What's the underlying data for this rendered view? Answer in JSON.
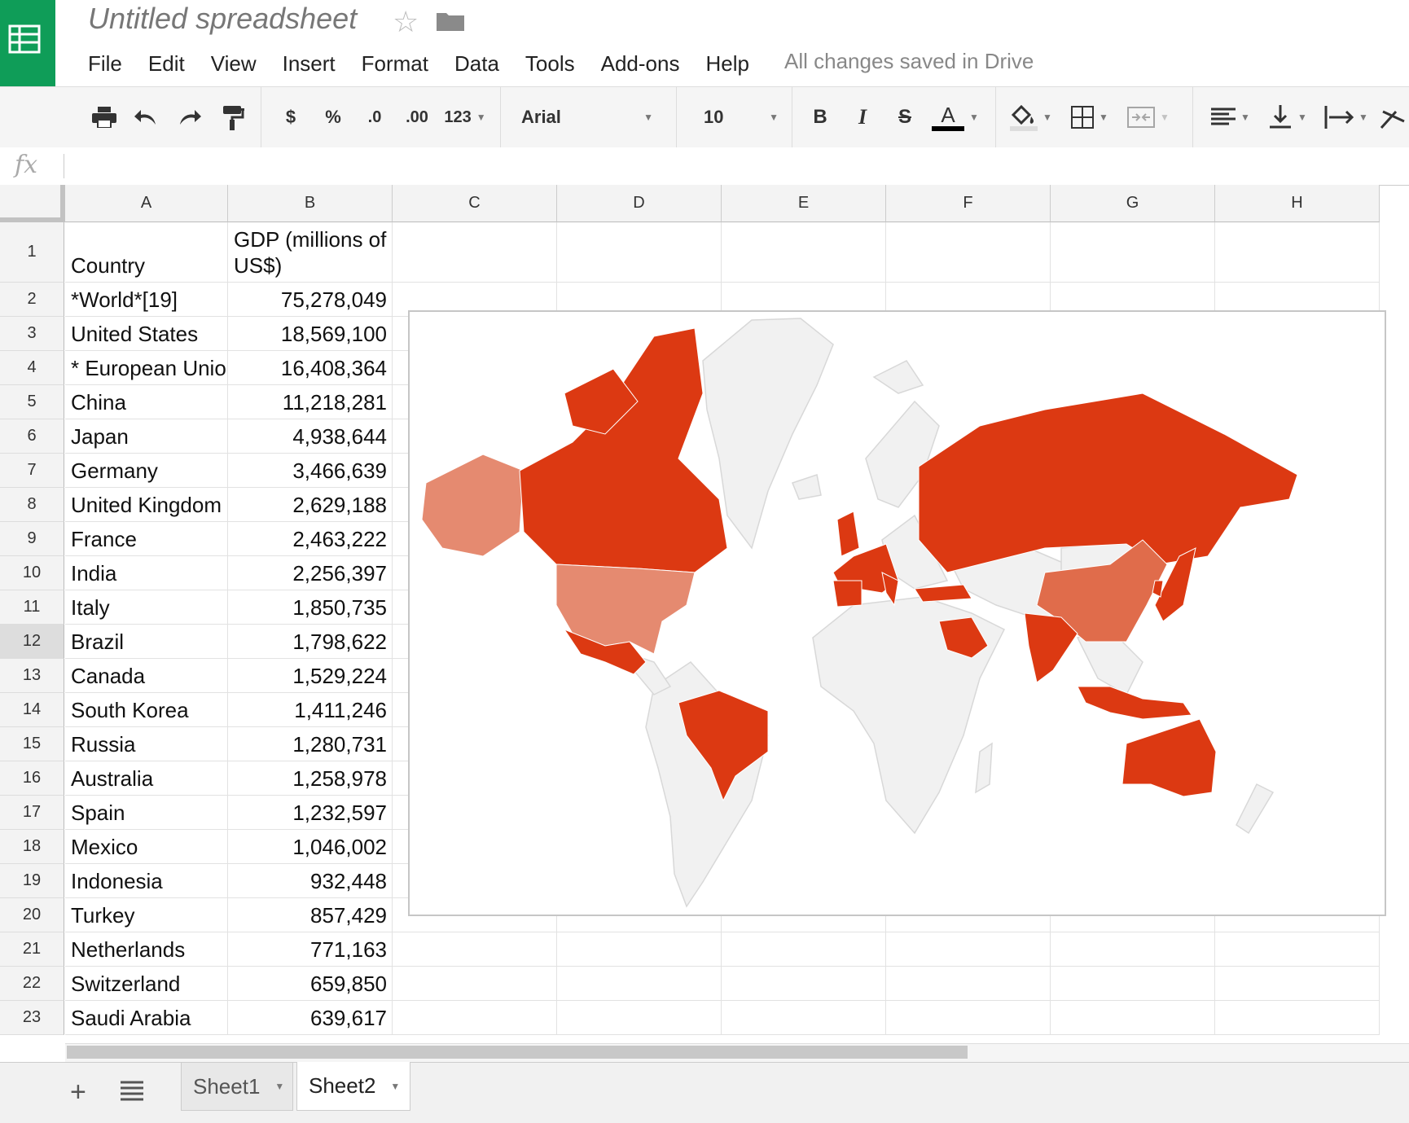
{
  "header": {
    "title": "Untitled spreadsheet",
    "saved_status": "All changes saved in Drive",
    "menu": [
      "File",
      "Edit",
      "View",
      "Insert",
      "Format",
      "Data",
      "Tools",
      "Add-ons",
      "Help"
    ]
  },
  "toolbar": {
    "currency": "$",
    "percent": "%",
    "decrease_decimal": ".0",
    "increase_decimal": ".00",
    "more_formats": "123",
    "font": "Arial",
    "font_size": "10",
    "bold": "B",
    "italic": "I",
    "strikethrough": "S",
    "text_color_letter": "A"
  },
  "formula_bar": {
    "icon": "fx",
    "value": ""
  },
  "columns": [
    "A",
    "B",
    "C",
    "D",
    "E",
    "F",
    "G",
    "H"
  ],
  "rows": [
    {
      "num": "1",
      "a": "Country",
      "b": "GDP (millions of US$)"
    },
    {
      "num": "2",
      "a": "*World*[19]",
      "b": "75,278,049"
    },
    {
      "num": "3",
      "a": "United States",
      "b": "18,569,100"
    },
    {
      "num": "4",
      "a": "* European Union",
      "b": "16,408,364"
    },
    {
      "num": "5",
      "a": "China",
      "b": "11,218,281"
    },
    {
      "num": "6",
      "a": "Japan",
      "b": "4,938,644"
    },
    {
      "num": "7",
      "a": "Germany",
      "b": "3,466,639"
    },
    {
      "num": "8",
      "a": "United Kingdom",
      "b": "2,629,188"
    },
    {
      "num": "9",
      "a": "France",
      "b": "2,463,222"
    },
    {
      "num": "10",
      "a": "India",
      "b": "2,256,397"
    },
    {
      "num": "11",
      "a": "Italy",
      "b": "1,850,735"
    },
    {
      "num": "12",
      "a": "Brazil",
      "b": "1,798,622"
    },
    {
      "num": "13",
      "a": "Canada",
      "b": "1,529,224"
    },
    {
      "num": "14",
      "a": "South Korea",
      "b": "1,411,246"
    },
    {
      "num": "15",
      "a": "Russia",
      "b": "1,280,731"
    },
    {
      "num": "16",
      "a": "Australia",
      "b": "1,258,978"
    },
    {
      "num": "17",
      "a": "Spain",
      "b": "1,232,597"
    },
    {
      "num": "18",
      "a": "Mexico",
      "b": "1,046,002"
    },
    {
      "num": "19",
      "a": "Indonesia",
      "b": "932,448"
    },
    {
      "num": "20",
      "a": "Turkey",
      "b": "857,429"
    },
    {
      "num": "21",
      "a": "Netherlands",
      "b": "771,163"
    },
    {
      "num": "22",
      "a": "Switzerland",
      "b": "659,850"
    },
    {
      "num": "23",
      "a": "Saudi Arabia",
      "b": "639,617"
    }
  ],
  "selected_row": "12",
  "sheets": [
    "Sheet1",
    "Sheet2"
  ],
  "active_sheet": "Sheet2",
  "colors": {
    "brand": "#0f9d58",
    "map_high": "#dc3912",
    "map_mid": "#e06c4b",
    "map_low": "#e58a70",
    "map_none": "#f1f1f1"
  },
  "chart_data": {
    "type": "geo",
    "locations": [
      "United States",
      "China",
      "Japan",
      "Germany",
      "United Kingdom",
      "France",
      "India",
      "Italy",
      "Brazil",
      "Canada",
      "South Korea",
      "Russia",
      "Australia",
      "Spain",
      "Mexico",
      "Indonesia",
      "Turkey",
      "Netherlands",
      "Switzerland",
      "Saudi Arabia"
    ],
    "values": [
      18569100,
      11218281,
      4938644,
      3466639,
      2629188,
      2463222,
      2256397,
      1850735,
      1798622,
      1529224,
      1411246,
      1280731,
      1258978,
      1232597,
      1046002,
      932448,
      857429,
      771163,
      659850,
      639617
    ]
  }
}
